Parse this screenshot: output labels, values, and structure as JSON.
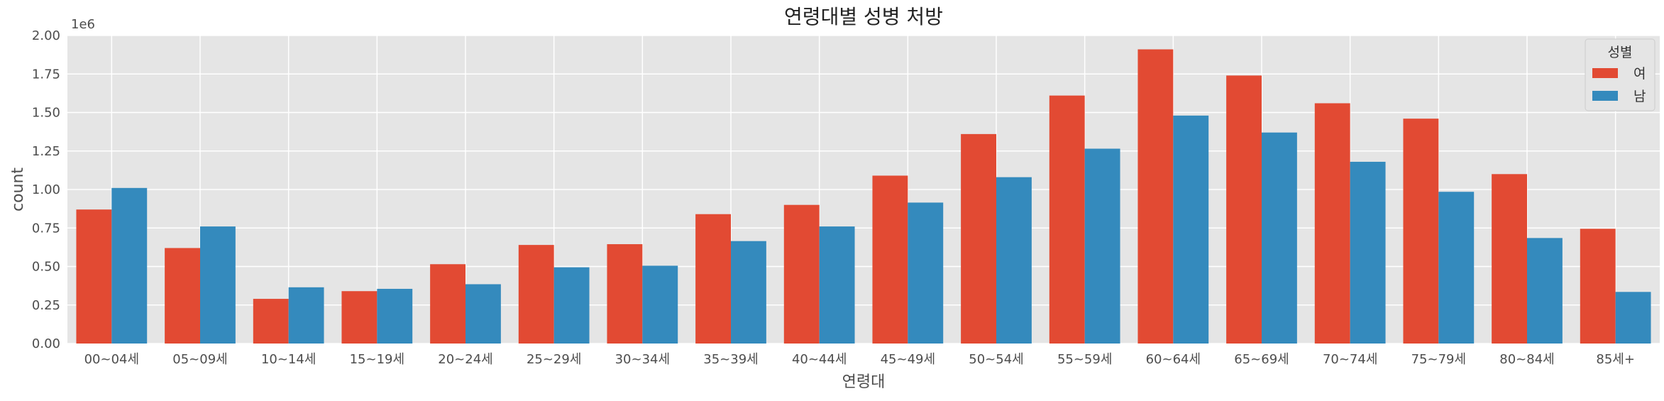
{
  "chart_data": {
    "type": "bar",
    "title": "연령대별 성병 처방",
    "xlabel": "연령대",
    "ylabel": "count",
    "y_offset_label": "1e6",
    "ylim": [
      0,
      2000000
    ],
    "yticks": [
      {
        "value": 0,
        "label": "0.00"
      },
      {
        "value": 250000,
        "label": "0.25"
      },
      {
        "value": 500000,
        "label": "0.50"
      },
      {
        "value": 750000,
        "label": "0.75"
      },
      {
        "value": 1000000,
        "label": "1.00"
      },
      {
        "value": 1250000,
        "label": "1.25"
      },
      {
        "value": 1500000,
        "label": "1.50"
      },
      {
        "value": 1750000,
        "label": "1.75"
      },
      {
        "value": 2000000,
        "label": "2.00"
      }
    ],
    "categories": [
      "00~04세",
      "05~09세",
      "10~14세",
      "15~19세",
      "20~24세",
      "25~29세",
      "30~34세",
      "35~39세",
      "40~44세",
      "45~49세",
      "50~54세",
      "55~59세",
      "60~64세",
      "65~69세",
      "70~74세",
      "75~79세",
      "80~84세",
      "85세+"
    ],
    "series": [
      {
        "name": "여",
        "color": "#e24a33",
        "values": [
          870000,
          620000,
          290000,
          340000,
          515000,
          640000,
          645000,
          840000,
          900000,
          1090000,
          1360000,
          1610000,
          1910000,
          1740000,
          1560000,
          1460000,
          1100000,
          745000
        ]
      },
      {
        "name": "남",
        "color": "#348abd",
        "values": [
          1010000,
          760000,
          365000,
          355000,
          385000,
          495000,
          505000,
          665000,
          760000,
          915000,
          1080000,
          1265000,
          1480000,
          1370000,
          1180000,
          985000,
          685000,
          335000
        ]
      }
    ],
    "legend": {
      "title": "성별",
      "position": "top-right"
    },
    "grid": true,
    "background": "#e5e5e5"
  }
}
